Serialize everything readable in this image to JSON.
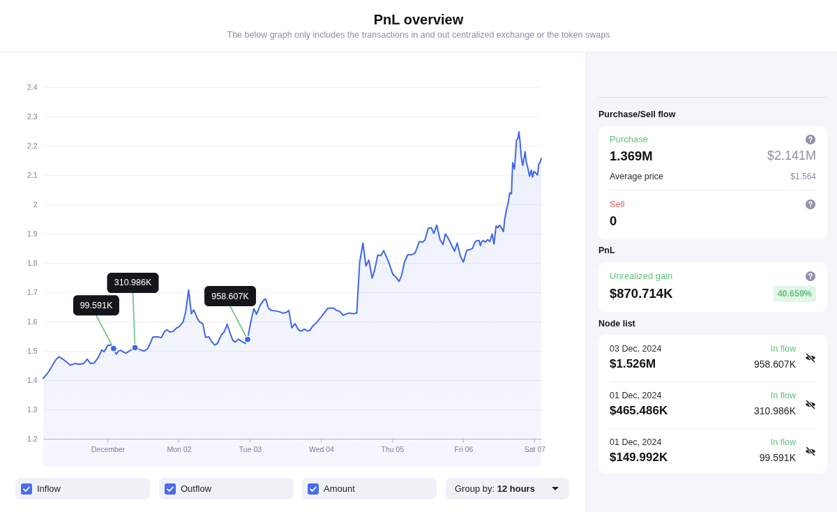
{
  "chart_data": [
    {
      "type": "area",
      "title": "PnL overview",
      "subtitle": "The below graph only includes the transactions in and out centralized exchange or the token swaps",
      "xlim": [
        "2024-11-30T02:15",
        "2024-12-07T02:15"
      ],
      "ylim": [
        1.2,
        2.4
      ],
      "xticks": [
        {
          "value": "2024-12-01",
          "label": "December"
        },
        {
          "value": "2024-12-02",
          "label": "Mon 02"
        },
        {
          "value": "2024-12-03",
          "label": "Tue 03"
        },
        {
          "value": "2024-12-04",
          "label": "Wed 04"
        },
        {
          "value": "2024-12-05",
          "label": "Thu 05"
        },
        {
          "value": "2024-12-06",
          "label": "Fri 06"
        },
        {
          "value": "2024-12-07",
          "label": "Sat 07"
        }
      ],
      "yticks": [
        1.2,
        1.3,
        1.4,
        1.5,
        1.6,
        1.7,
        1.8,
        1.9,
        2,
        2.1,
        2.2,
        2.3,
        2.4
      ],
      "grid": "y",
      "annotations": [
        {
          "text": "99.591K",
          "x": "2024-12-01T02:00",
          "y": 1.508
        },
        {
          "text": "310.986K",
          "x": "2024-12-01T09:12",
          "y": 1.511
        },
        {
          "text": "958.607K",
          "x": "2024-12-02T23:12",
          "y": 1.539
        }
      ],
      "series": [
        {
          "type": "area",
          "color": "#3f66e8",
          "x": [
            "2024-11-30T02:15",
            "2024-11-30T04:06",
            "2024-11-30T06:24",
            "2024-11-30T07:30",
            "2024-11-30T09:06",
            "2024-11-30T11:24",
            "2024-11-30T12:54",
            "2024-11-30T14:24",
            "2024-11-30T15:54",
            "2024-11-30T17:06",
            "2024-11-30T18:06",
            "2024-11-30T19:30",
            "2024-11-30T20:54",
            "2024-11-30T22:00",
            "2024-11-30T22:48",
            "2024-12-01T00:00",
            "2024-12-01T01:06",
            "2024-12-01T02:00",
            "2024-12-01T02:54",
            "2024-12-01T03:36",
            "2024-12-01T04:18",
            "2024-12-01T06:06",
            "2024-12-01T07:48",
            "2024-12-01T09:12",
            "2024-12-01T10:54",
            "2024-12-01T12:12",
            "2024-12-01T13:18",
            "2024-12-01T14:06",
            "2024-12-01T15:12",
            "2024-12-01T16:36",
            "2024-12-01T18:06",
            "2024-12-01T19:06",
            "2024-12-01T19:54",
            "2024-12-01T21:06",
            "2024-12-01T22:06",
            "2024-12-01T23:12",
            "2024-12-02T00:00",
            "2024-12-02T01:24",
            "2024-12-02T02:18",
            "2024-12-02T03:18",
            "2024-12-02T04:12",
            "2024-12-02T05:00",
            "2024-12-02T06:12",
            "2024-12-02T07:00",
            "2024-12-02T08:06",
            "2024-12-02T09:00",
            "2024-12-02T10:06",
            "2024-12-02T11:06",
            "2024-12-02T12:06",
            "2024-12-02T13:00",
            "2024-12-02T14:18",
            "2024-12-02T15:18",
            "2024-12-02T16:18",
            "2024-12-02T17:24",
            "2024-12-02T18:12",
            "2024-12-02T19:00",
            "2024-12-02T20:06",
            "2024-12-02T21:06",
            "2024-12-02T22:24",
            "2024-12-02T23:12",
            "2024-12-03T00:06",
            "2024-12-03T01:18",
            "2024-12-03T02:12",
            "2024-12-03T03:24",
            "2024-12-03T04:42",
            "2024-12-03T05:18",
            "2024-12-03T06:12",
            "2024-12-03T07:12",
            "2024-12-03T08:54",
            "2024-12-03T10:06",
            "2024-12-03T11:00",
            "2024-12-03T12:12",
            "2024-12-03T13:06",
            "2024-12-03T14:06",
            "2024-12-03T15:12",
            "2024-12-03T16:18",
            "2024-12-03T17:18",
            "2024-12-03T18:18",
            "2024-12-03T19:24",
            "2024-12-03T20:12",
            "2024-12-03T21:06",
            "2024-12-03T22:18",
            "2024-12-04T00:00",
            "2024-12-04T01:00",
            "2024-12-04T02:18",
            "2024-12-04T04:12",
            "2024-12-04T05:12",
            "2024-12-04T06:06",
            "2024-12-04T07:24",
            "2024-12-04T09:12",
            "2024-12-04T10:54",
            "2024-12-04T12:00",
            "2024-12-04T13:00",
            "2024-12-04T14:06",
            "2024-12-04T15:06",
            "2024-12-04T16:06",
            "2024-12-04T17:12",
            "2024-12-04T18:00",
            "2024-12-04T19:06",
            "2024-12-04T20:06",
            "2024-12-04T21:06",
            "2024-12-04T22:42",
            "2024-12-05T00:12",
            "2024-12-05T01:12",
            "2024-12-05T02:18",
            "2024-12-05T03:06",
            "2024-12-05T04:06",
            "2024-12-05T05:12",
            "2024-12-05T06:36",
            "2024-12-05T07:42",
            "2024-12-05T09:06",
            "2024-12-05T10:06",
            "2024-12-05T11:00",
            "2024-12-05T12:06",
            "2024-12-05T13:12",
            "2024-12-05T14:00",
            "2024-12-05T15:00",
            "2024-12-05T16:06",
            "2024-12-05T17:06",
            "2024-12-05T17:54",
            "2024-12-05T18:54",
            "2024-12-05T20:00",
            "2024-12-05T21:00",
            "2024-12-05T21:54",
            "2024-12-05T22:54",
            "2024-12-06T00:00",
            "2024-12-06T01:06",
            "2024-12-06T02:12",
            "2024-12-06T03:00",
            "2024-12-06T04:00",
            "2024-12-06T04:42",
            "2024-12-06T05:18",
            "2024-12-06T05:42",
            "2024-12-06T06:06",
            "2024-12-06T06:42",
            "2024-12-06T07:24",
            "2024-12-06T08:12",
            "2024-12-06T08:54",
            "2024-12-06T09:42",
            "2024-12-06T10:18",
            "2024-12-06T11:00",
            "2024-12-06T11:36",
            "2024-12-06T12:12",
            "2024-12-06T12:48",
            "2024-12-06T13:30",
            "2024-12-06T13:54",
            "2024-12-06T14:30",
            "2024-12-06T15:06",
            "2024-12-06T15:36",
            "2024-12-06T16:12",
            "2024-12-06T16:36",
            "2024-12-06T17:12",
            "2024-12-06T17:54",
            "2024-12-06T18:24",
            "2024-12-06T18:42",
            "2024-12-06T19:06",
            "2024-12-06T19:30",
            "2024-12-06T20:00",
            "2024-12-06T20:24",
            "2024-12-06T20:48",
            "2024-12-06T21:12",
            "2024-12-06T21:48",
            "2024-12-06T22:18",
            "2024-12-06T22:54",
            "2024-12-06T23:18",
            "2024-12-06T23:48",
            "2024-12-07T00:24",
            "2024-12-07T01:00",
            "2024-12-07T01:24",
            "2024-12-07T01:48",
            "2024-12-07T02:15"
          ],
          "values": [
            1.406,
            1.429,
            1.468,
            1.48,
            1.47,
            1.451,
            1.457,
            1.454,
            1.457,
            1.472,
            1.457,
            1.459,
            1.479,
            1.503,
            1.497,
            1.519,
            1.52,
            1.508,
            1.489,
            1.499,
            1.502,
            1.492,
            1.503,
            1.511,
            1.504,
            1.499,
            1.506,
            1.52,
            1.547,
            1.548,
            1.545,
            1.565,
            1.572,
            1.564,
            1.567,
            1.578,
            1.582,
            1.598,
            1.633,
            1.708,
            1.627,
            1.64,
            1.612,
            1.599,
            1.592,
            1.546,
            1.548,
            1.531,
            1.52,
            1.525,
            1.554,
            1.565,
            1.591,
            1.557,
            1.536,
            1.53,
            1.54,
            1.533,
            1.525,
            1.539,
            1.591,
            1.644,
            1.625,
            1.655,
            1.674,
            1.677,
            1.646,
            1.638,
            1.636,
            1.633,
            1.629,
            1.631,
            1.638,
            1.579,
            1.593,
            1.572,
            1.567,
            1.574,
            1.568,
            1.57,
            1.584,
            1.595,
            1.616,
            1.629,
            1.646,
            1.646,
            1.638,
            1.636,
            1.622,
            1.629,
            1.627,
            1.629,
            1.803,
            1.868,
            1.79,
            1.81,
            1.748,
            1.774,
            1.827,
            1.825,
            1.842,
            1.805,
            1.761,
            1.752,
            1.737,
            1.756,
            1.803,
            1.828,
            1.828,
            1.834,
            1.873,
            1.871,
            1.878,
            1.918,
            1.92,
            1.901,
            1.929,
            1.88,
            1.863,
            1.899,
            1.884,
            1.861,
            1.84,
            1.868,
            1.825,
            1.803,
            1.843,
            1.846,
            1.849,
            1.873,
            1.877,
            1.876,
            1.859,
            1.872,
            1.877,
            1.871,
            1.88,
            1.873,
            1.899,
            1.865,
            1.926,
            1.92,
            1.929,
            1.92,
            1.907,
            1.947,
            1.981,
            2.005,
            2.039,
            2.036,
            2.142,
            2.12,
            2.218,
            2.227,
            2.248,
            2.214,
            2.163,
            2.133,
            2.155,
            2.18,
            2.146,
            2.121,
            2.096,
            2.117,
            2.093,
            2.113,
            2.107,
            2.1,
            2.138,
            2.142,
            2.157
          ]
        },
        {
          "type": "scatter",
          "color": "#3f66e8",
          "marker": "circle",
          "x": [
            "2024-12-01T02:00",
            "2024-12-01T09:12",
            "2024-12-02T23:12"
          ],
          "values": [
            1.508,
            1.511,
            1.539
          ]
        }
      ]
    },
    {
      "type": "other",
      "annotations": [
        "Inflow",
        "Outflow",
        "Amount",
        "Group by: 12 hours"
      ]
    },
    {
      "type": "other",
      "title": "Purchase/Sell flow",
      "annotations": [
        "Purchase",
        "1.369M",
        "$2.141M",
        "Average price",
        "$1.564",
        "Sell",
        "0"
      ]
    },
    {
      "type": "other",
      "title": "PnL",
      "annotations": [
        "Unrealized gain",
        "$870.714K",
        "40.659%"
      ]
    },
    {
      "type": "other",
      "title": "Node list",
      "annotations": [
        "03 Dec, 2024",
        "$1.526M",
        "In flow",
        "958.607K",
        "01 Dec, 2024",
        "$465.486K",
        "In flow",
        "310.986K",
        "01 Dec, 2024",
        "$149.992K",
        "In flow",
        "99.591K"
      ]
    }
  ]
}
